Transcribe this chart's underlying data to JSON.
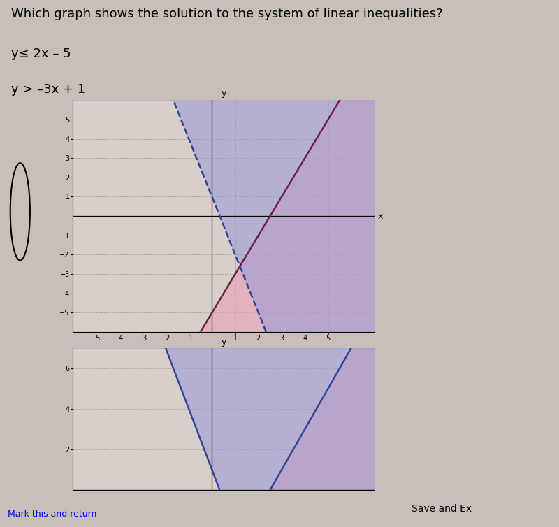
{
  "title_text": "Which graph shows the solution to the system of linear inequalities?",
  "ineq1_label": "y≤ 2x – 5",
  "ineq2_label": "y > –3x + 1",
  "xlim": [
    -6,
    7
  ],
  "ylim": [
    -6,
    6
  ],
  "xticks": [
    -5,
    -4,
    -3,
    -2,
    -1,
    1,
    2,
    3,
    4,
    5
  ],
  "yticks": [
    -5,
    -4,
    -3,
    -2,
    -1,
    1,
    2,
    3,
    4,
    5
  ],
  "line1_slope": 2,
  "line1_intercept": -5,
  "line2_slope": -3,
  "line2_intercept": 1,
  "shade1_color": "#e8a0b8",
  "shade2_color": "#9898d8",
  "shade1_alpha": 0.6,
  "shade2_alpha": 0.55,
  "bg_color": "#d8d0c8",
  "grid_color": "#888888",
  "title_fontsize": 13,
  "label_fontsize": 13,
  "second_ylim": [
    0,
    7
  ],
  "second_yticks": [
    2,
    4,
    6
  ],
  "btn_text": "Save and Ex",
  "link_text": "Mark this and return"
}
